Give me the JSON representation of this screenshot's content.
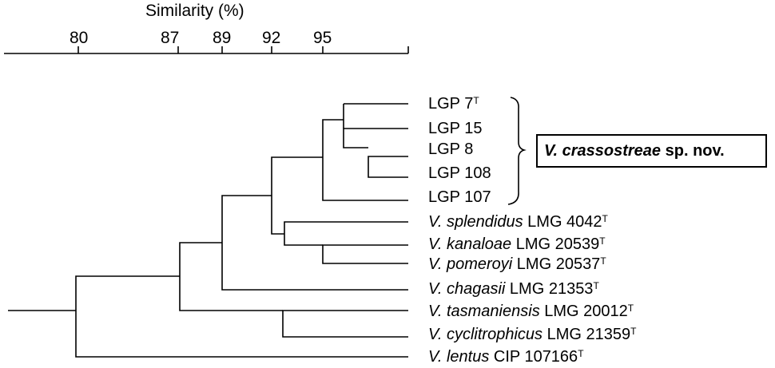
{
  "axis": {
    "title": "Similarity (%)",
    "ticks": [
      "80",
      "87",
      "89",
      "92",
      "95"
    ]
  },
  "leaves": [
    {
      "species": "",
      "name": "LGP 7",
      "type": "T"
    },
    {
      "species": "",
      "name": "LGP 15",
      "type": ""
    },
    {
      "species": "",
      "name": "LGP 8",
      "type": ""
    },
    {
      "species": "",
      "name": "LGP 108",
      "type": ""
    },
    {
      "species": "",
      "name": "LGP 107",
      "type": ""
    },
    {
      "species": "V. splendidus",
      "name": "LMG 4042",
      "type": "T"
    },
    {
      "species": "V. kanaloae",
      "name": "LMG 20539",
      "type": "T"
    },
    {
      "species": "V. pomeroyi",
      "name": "LMG 20537",
      "type": "T"
    },
    {
      "species": "V. chagasii",
      "name": "LMG 21353",
      "type": "T"
    },
    {
      "species": "V. tasmaniensis",
      "name": "LMG 20012",
      "type": "T"
    },
    {
      "species": "V. cyclitrophicus",
      "name": "LMG 21359",
      "type": "T"
    },
    {
      "species": "V. lentus",
      "name": "CIP 107166",
      "type": "T"
    }
  ],
  "group": {
    "species": "V. crassostreae",
    "rest": "sp. nov."
  }
}
